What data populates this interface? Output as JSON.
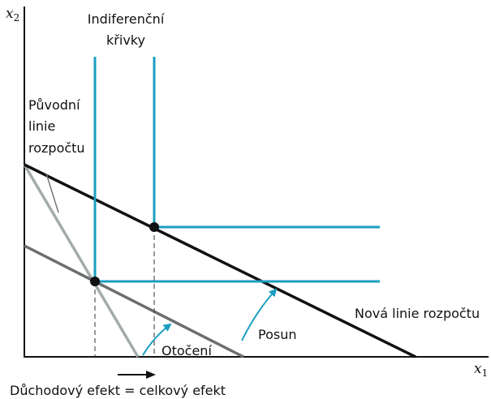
{
  "axes": {
    "y_label": "x",
    "y_sub": "2",
    "x_label": "x",
    "x_sub": "1"
  },
  "labels": {
    "indifference": [
      "Indiferenční",
      "křivky"
    ],
    "original_budget": [
      "Původní",
      "linie",
      "rozpočtu"
    ],
    "new_budget": "Nová linie rozpočtu",
    "shift": "Posun",
    "rotation": "Otočení",
    "effect": "Důchodový efekt = celkový efekt"
  }
}
